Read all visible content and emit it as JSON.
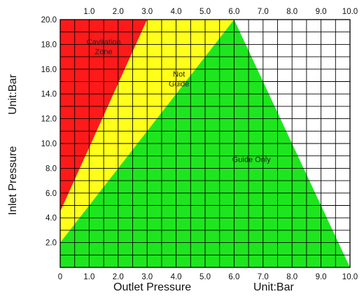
{
  "chart_data": {
    "type": "area",
    "title": "",
    "xlabel": "Outlet Pressure",
    "x_unit": "Unit:Bar",
    "ylabel": "Inlet Pressure",
    "y_unit": "Unit:Bar",
    "xlim": [
      0,
      10
    ],
    "ylim": [
      0,
      20
    ],
    "x_ticks_bottom": [
      "0",
      "1.0",
      "2.0",
      "3.0",
      "4.0",
      "5.0",
      "6.0",
      "7.0",
      "8.0",
      "9.0",
      "10.0"
    ],
    "x_ticks_top": [
      "1.0",
      "2.0",
      "3.0",
      "4.0",
      "5.0",
      "6.0",
      "7.0",
      "8.0",
      "9.0",
      "10.0"
    ],
    "y_ticks": [
      "2.0",
      "4.0",
      "6.0",
      "8.0",
      "10.0",
      "12.0",
      "14.0",
      "16.0",
      "18.0",
      "20.0"
    ],
    "grid": true,
    "regions": [
      {
        "name": "Cavitation Zone",
        "label_lines": [
          "Cavitation",
          "Zone"
        ],
        "color": "#ff1a1a",
        "upper_boundary": [
          [
            0,
            20
          ],
          [
            10,
            20
          ]
        ],
        "lower_boundary": [
          [
            0,
            4.5
          ],
          [
            3.0,
            20
          ]
        ]
      },
      {
        "name": "Not Guide",
        "label_lines": [
          "Not",
          "Guide"
        ],
        "color": "#ffff1a",
        "upper_boundary": [
          [
            0,
            4.5
          ],
          [
            3.0,
            20
          ]
        ],
        "lower_boundary": [
          [
            0,
            2.0
          ],
          [
            6.0,
            20
          ]
        ]
      },
      {
        "name": "Guide Only",
        "label_lines": [
          "Guide Only"
        ],
        "color": "#1ee61e",
        "upper_boundary": [
          [
            0,
            2.0
          ],
          [
            6.0,
            20
          ]
        ],
        "lower_boundary": [
          [
            0,
            0
          ],
          [
            10,
            0
          ]
        ]
      }
    ],
    "annotations": [
      {
        "text_lines": [
          "Cavitation",
          "Zone"
        ],
        "x": 1.5,
        "y": 18.0
      },
      {
        "text_lines": [
          "Not",
          "Guide"
        ],
        "x": 4.1,
        "y": 15.4
      },
      {
        "text_lines": [
          "Guide Only"
        ],
        "x": 6.6,
        "y": 8.5
      }
    ]
  }
}
